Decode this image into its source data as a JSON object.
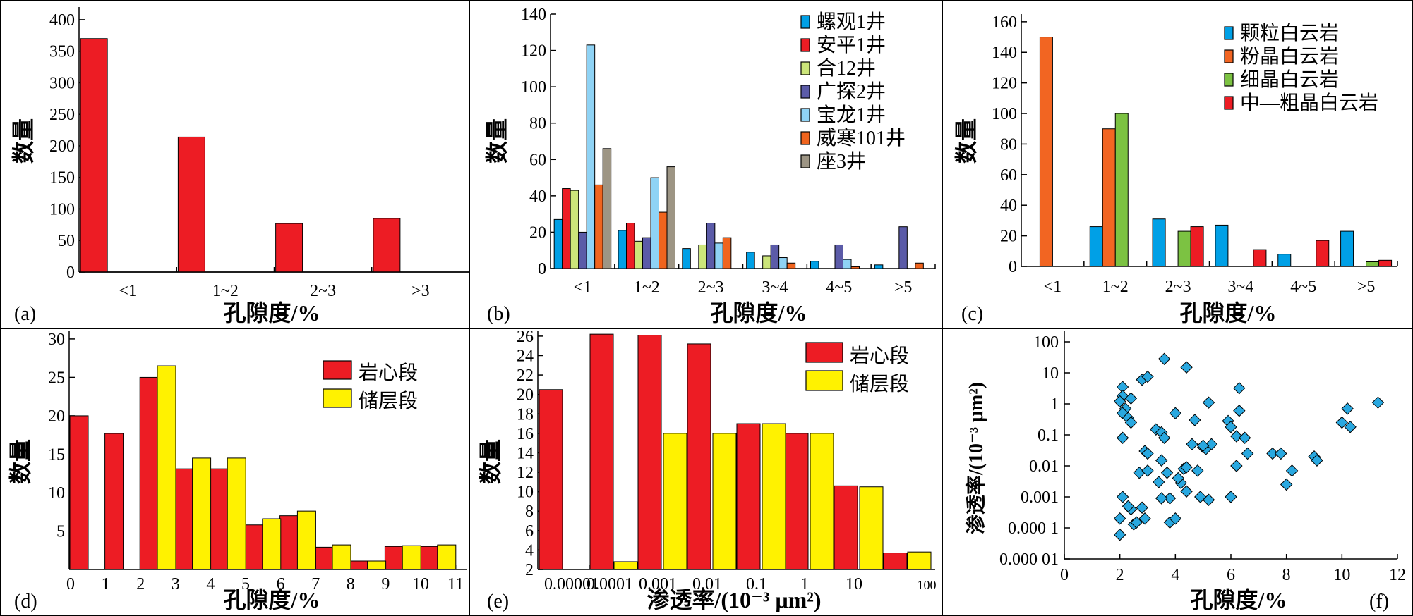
{
  "colors": {
    "red": "#ed1c24",
    "yellow": "#fff200",
    "blue": "#00a0e6",
    "orange": "#f26522",
    "lightgreen": "#cce57a",
    "purple": "#5b5ba8",
    "lightblue": "#8fd3f5",
    "darkorange": "#f0641e",
    "gray": "#9d9584",
    "green": "#7cc242",
    "diamond": "#29a8e0"
  },
  "chart_data": [
    {
      "id": "a",
      "type": "bar",
      "panel_label": "(a)",
      "xlabel": "孔隙度/%",
      "ylabel": "数量",
      "categories": [
        "<1",
        "1~2",
        "2~3",
        ">3"
      ],
      "series": [
        {
          "color": "#ed1c24",
          "values": [
            370,
            214,
            77,
            85
          ]
        }
      ],
      "ylim": [
        0,
        420
      ],
      "yticks": [
        "0",
        "50",
        "100",
        "150",
        "200",
        "250",
        "300",
        "350",
        "400"
      ]
    },
    {
      "id": "b",
      "type": "bar",
      "panel_label": "(b)",
      "xlabel": "孔隙度/%",
      "ylabel": "数量",
      "categories": [
        "<1",
        "1~2",
        "2~3",
        "3~4",
        "4~5",
        ">5"
      ],
      "series": [
        {
          "name": "螺观1井",
          "color": "#00a0e6",
          "values": [
            27,
            21,
            11,
            9,
            4,
            2
          ]
        },
        {
          "name": "安平1井",
          "color": "#ed1c24",
          "values": [
            44,
            25,
            0,
            0,
            0,
            0
          ]
        },
        {
          "name": "合12井",
          "color": "#cce57a",
          "values": [
            43,
            15,
            13,
            7,
            0,
            0
          ]
        },
        {
          "name": "广探2井",
          "color": "#5b5ba8",
          "values": [
            20,
            17,
            25,
            13,
            13,
            23
          ]
        },
        {
          "name": "宝龙1井",
          "color": "#8fd3f5",
          "values": [
            123,
            50,
            14,
            6,
            5,
            0
          ]
        },
        {
          "name": "威寒101井",
          "color": "#f0641e",
          "values": [
            46,
            31,
            17,
            3,
            1,
            3
          ]
        },
        {
          "name": "座3井",
          "color": "#9d9584",
          "values": [
            66,
            56,
            0,
            0,
            0,
            0
          ]
        }
      ],
      "ylim": [
        0,
        140
      ],
      "yticks": [
        "0",
        "20",
        "40",
        "60",
        "80",
        "100",
        "120",
        "140"
      ],
      "legend": "top-right"
    },
    {
      "id": "c",
      "type": "bar",
      "panel_label": "(c)",
      "xlabel": "孔隙度/%",
      "ylabel": "数量",
      "categories": [
        "<1",
        "1~2",
        "2~3",
        "3~4",
        "4~5",
        ">5"
      ],
      "series": [
        {
          "name": "颗粒白云岩",
          "color": "#00a0e6",
          "values": [
            0,
            26,
            31,
            27,
            8,
            23
          ]
        },
        {
          "name": "粉晶白云岩",
          "color": "#f26522",
          "values": [
            150,
            90,
            0,
            0,
            0,
            0
          ]
        },
        {
          "name": "细晶白云岩",
          "color": "#7cc242",
          "values": [
            0,
            100,
            23,
            0,
            0,
            3
          ]
        },
        {
          "name": "中—粗晶白云岩",
          "color": "#ed1c24",
          "values": [
            0,
            0,
            26,
            11,
            17,
            4
          ]
        }
      ],
      "ylim": [
        0,
        165
      ],
      "yticks": [
        "0",
        "20",
        "40",
        "60",
        "80",
        "100",
        "120",
        "140",
        "160"
      ],
      "legend": "top-right"
    },
    {
      "id": "d",
      "type": "bar",
      "panel_label": "(d)",
      "xlabel": "孔隙度/%",
      "ylabel": "数量",
      "x_ticks": [
        "0",
        "1",
        "2",
        "3",
        "4",
        "5",
        "6",
        "7",
        "8",
        "9",
        "10",
        "11"
      ],
      "series": [
        {
          "name": "岩心段",
          "color": "#ed1c24",
          "x": [
            0,
            1,
            2,
            3,
            4,
            5,
            6,
            7,
            8,
            9,
            10
          ],
          "values": [
            20,
            17.7,
            25,
            13.1,
            13.1,
            5.8,
            7,
            2.9,
            1.1,
            3,
            3
          ]
        },
        {
          "name": "储层段",
          "color": "#fff200",
          "x": [
            2.5,
            3.5,
            4.5,
            5.5,
            6.5,
            7.5,
            8.5,
            9.5,
            10.5
          ],
          "values": [
            26.5,
            14.5,
            14.5,
            6.6,
            7.6,
            3.2,
            1.1,
            3.1,
            3.2
          ]
        }
      ],
      "ylim": [
        0,
        31
      ],
      "yticks": [
        "5",
        "10",
        "15",
        "20",
        "25",
        "30"
      ],
      "legend": "top-right"
    },
    {
      "id": "e",
      "type": "bar",
      "panel_label": "(e)",
      "xlabel": "渗透率/(10⁻³ μm²)",
      "ylabel": "数量",
      "x_ticks": [
        "0.00001",
        "0.0001",
        "0.001",
        "0.01",
        "0.1",
        "1",
        "10",
        "100"
      ],
      "series": [
        {
          "name": "岩心段",
          "color": "#ed1c24",
          "values": [
            20.5,
            26.2,
            26.1,
            25.2,
            17,
            16,
            10.6,
            3.7
          ]
        },
        {
          "name": "储层段",
          "color": "#fff200",
          "values": [
            2.8,
            16,
            16,
            17,
            16,
            10.5,
            3.8
          ]
        }
      ],
      "ylim": [
        2,
        26.5
      ],
      "yticks": [
        "2",
        "4",
        "6",
        "8",
        "10",
        "12",
        "14",
        "16",
        "18",
        "20",
        "22",
        "24",
        "26"
      ],
      "legend": "top-right"
    },
    {
      "id": "f",
      "type": "scatter",
      "panel_label": "(f)",
      "xlabel": "孔隙度/%",
      "ylabel": "渗透率/(10⁻³ μm²)",
      "xlim": [
        0,
        12
      ],
      "x_ticks": [
        "0",
        "2",
        "4",
        "6",
        "8",
        "10",
        "12"
      ],
      "ylim": [
        1e-05,
        100
      ],
      "y_scale": "log",
      "y_ticks": [
        "0.000 01",
        "0.000 1",
        "0.001",
        "0.01",
        "0.1",
        "1",
        "10",
        "100"
      ],
      "points": [
        [
          2.0,
          6e-05
        ],
        [
          2.0,
          0.0002
        ],
        [
          2.1,
          0.001
        ],
        [
          2.1,
          3.5
        ],
        [
          2.1,
          1.8
        ],
        [
          2.0,
          1.2
        ],
        [
          2.2,
          0.7
        ],
        [
          2.1,
          0.5
        ],
        [
          2.3,
          0.35
        ],
        [
          2.1,
          0.08
        ],
        [
          2.4,
          1.5
        ],
        [
          2.4,
          0.25
        ],
        [
          2.4,
          0.0004
        ],
        [
          2.3,
          0.0005
        ],
        [
          2.5,
          0.00013
        ],
        [
          2.6,
          0.00015
        ],
        [
          2.7,
          0.006
        ],
        [
          2.8,
          0.00045
        ],
        [
          2.9,
          0.0002
        ],
        [
          2.9,
          0.03
        ],
        [
          3.0,
          0.025
        ],
        [
          2.8,
          6
        ],
        [
          3.0,
          7.5
        ],
        [
          3.0,
          0.007
        ],
        [
          3.3,
          0.15
        ],
        [
          3.5,
          0.12
        ],
        [
          3.4,
          0.003
        ],
        [
          3.5,
          0.015
        ],
        [
          3.6,
          0.08
        ],
        [
          3.7,
          0.006
        ],
        [
          3.8,
          0.0009
        ],
        [
          3.5,
          0.0009
        ],
        [
          3.6,
          28
        ],
        [
          3.8,
          0.00015
        ],
        [
          4.0,
          0.0002
        ],
        [
          4.2,
          0.0028
        ],
        [
          4.1,
          0.004
        ],
        [
          4.3,
          0.008
        ],
        [
          4.4,
          0.009
        ],
        [
          4.4,
          0.0015
        ],
        [
          4.0,
          0.5
        ],
        [
          4.4,
          15
        ],
        [
          4.6,
          0.05
        ],
        [
          4.7,
          0.3
        ],
        [
          4.8,
          0.007
        ],
        [
          4.9,
          0.001
        ],
        [
          5.0,
          0.04
        ],
        [
          5.1,
          0.035
        ],
        [
          5.2,
          1.1
        ],
        [
          5.2,
          0.0008
        ],
        [
          5.3,
          0.05
        ],
        [
          5.0,
          0.045
        ],
        [
          5.9,
          0.28
        ],
        [
          6.0,
          0.18
        ],
        [
          6.2,
          0.09
        ],
        [
          6.0,
          0.001
        ],
        [
          6.3,
          0.6
        ],
        [
          6.3,
          3.2
        ],
        [
          6.2,
          0.01
        ],
        [
          6.5,
          0.08
        ],
        [
          6.6,
          0.025
        ],
        [
          7.5,
          0.025
        ],
        [
          7.8,
          0.025
        ],
        [
          8.0,
          0.0025
        ],
        [
          8.2,
          0.007
        ],
        [
          9.0,
          0.02
        ],
        [
          9.1,
          0.015
        ],
        [
          10.0,
          0.25
        ],
        [
          10.2,
          0.7
        ],
        [
          10.3,
          0.18
        ],
        [
          11.3,
          1.1
        ]
      ],
      "marker": "diamond"
    }
  ]
}
